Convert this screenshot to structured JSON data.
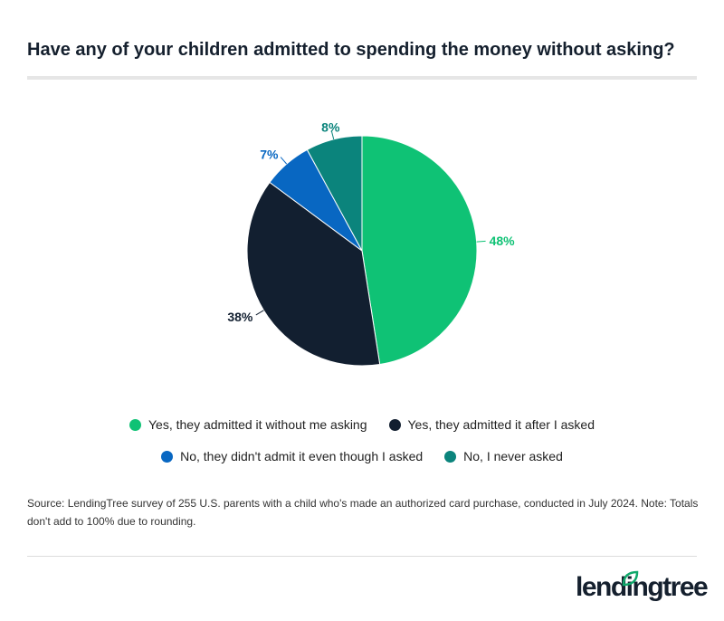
{
  "title": "Have any of your children admitted to spending the money without asking?",
  "chart_data": {
    "type": "pie",
    "title": "Have any of your children admitted to spending the money without asking?",
    "slices": [
      {
        "label": "Yes, they admitted it without me asking",
        "value": 48,
        "display": "48%",
        "color": "#0fc275"
      },
      {
        "label": "Yes, they admitted it after I asked",
        "value": 38,
        "display": "38%",
        "color": "#121f30"
      },
      {
        "label": "No, they didn't admit it even though I asked",
        "value": 7,
        "display": "7%",
        "color": "#0867c2"
      },
      {
        "label": "No, I never asked",
        "value": 8,
        "display": "8%",
        "color": "#0b847c"
      }
    ],
    "legend_position": "bottom"
  },
  "source": "Source: LendingTree survey of 255 U.S. parents with a child who's made an authorized card purchase, conducted in July 2024. Note: Totals don't add to 100% due to rounding.",
  "logo": "lendingtree"
}
